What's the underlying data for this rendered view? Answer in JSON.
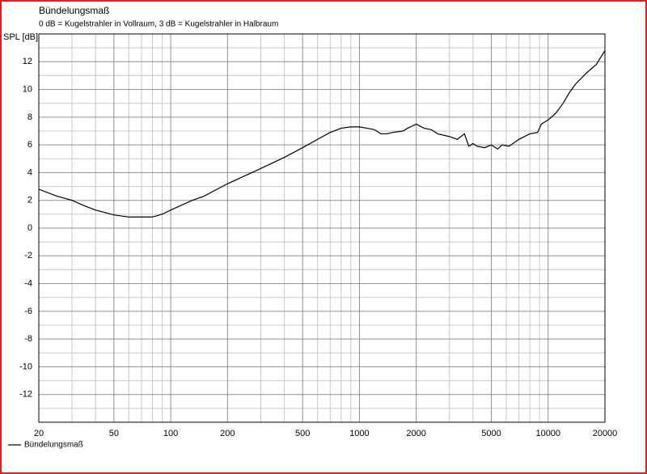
{
  "chart_data": {
    "type": "line",
    "title": "Bündelungsmaß",
    "subtitle": "0 dB = Kugelstrahler in Vollraum, 3 dB = Kugelstrahler in Halbraum",
    "y_label": "SPL [dB]",
    "x_scale": "log",
    "xlim": [
      20,
      20000
    ],
    "xticks": [
      20,
      50,
      100,
      200,
      500,
      1000,
      2000,
      5000,
      10000,
      20000
    ],
    "x_minor_ticks": [
      30,
      40,
      60,
      70,
      80,
      90,
      300,
      400,
      600,
      700,
      800,
      900,
      3000,
      4000,
      6000,
      7000,
      8000,
      9000
    ],
    "ylim": [
      -14,
      14
    ],
    "yticks": [
      -12,
      -10,
      -8,
      -6,
      -4,
      -2,
      0,
      2,
      4,
      6,
      8,
      10,
      12
    ],
    "y_minor_ticks": [
      -13,
      -11,
      -9,
      -7,
      -5,
      -3,
      -1,
      1,
      3,
      5,
      7,
      9,
      11,
      13
    ],
    "grid": true,
    "legend": "bottom-left",
    "x": [
      20,
      25,
      30,
      35,
      40,
      50,
      60,
      70,
      80,
      90,
      100,
      130,
      150,
      200,
      300,
      400,
      500,
      600,
      700,
      800,
      900,
      1000,
      1100,
      1200,
      1300,
      1400,
      1500,
      1700,
      1800,
      2000,
      2200,
      2400,
      2600,
      3000,
      3300,
      3600,
      3800,
      4000,
      4200,
      4600,
      5000,
      5400,
      5700,
      6200,
      7000,
      8000,
      8800,
      9200,
      10000,
      11000,
      12000,
      13000,
      14000,
      16000,
      18000,
      20000
    ],
    "series": [
      {
        "name": "Bündelungsmaß",
        "color": "#000000",
        "values": [
          2.8,
          2.3,
          2.0,
          1.6,
          1.3,
          0.95,
          0.8,
          0.8,
          0.8,
          1.0,
          1.3,
          2.0,
          2.3,
          3.2,
          4.3,
          5.1,
          5.8,
          6.4,
          6.9,
          7.2,
          7.3,
          7.3,
          7.2,
          7.1,
          6.8,
          6.8,
          6.9,
          7.0,
          7.2,
          7.5,
          7.2,
          7.1,
          6.8,
          6.6,
          6.4,
          6.8,
          5.9,
          6.1,
          5.9,
          5.8,
          6.0,
          5.7,
          6.0,
          5.9,
          6.4,
          6.8,
          6.9,
          7.5,
          7.8,
          8.3,
          9.0,
          9.8,
          10.4,
          11.2,
          11.8,
          12.8
        ]
      }
    ]
  }
}
